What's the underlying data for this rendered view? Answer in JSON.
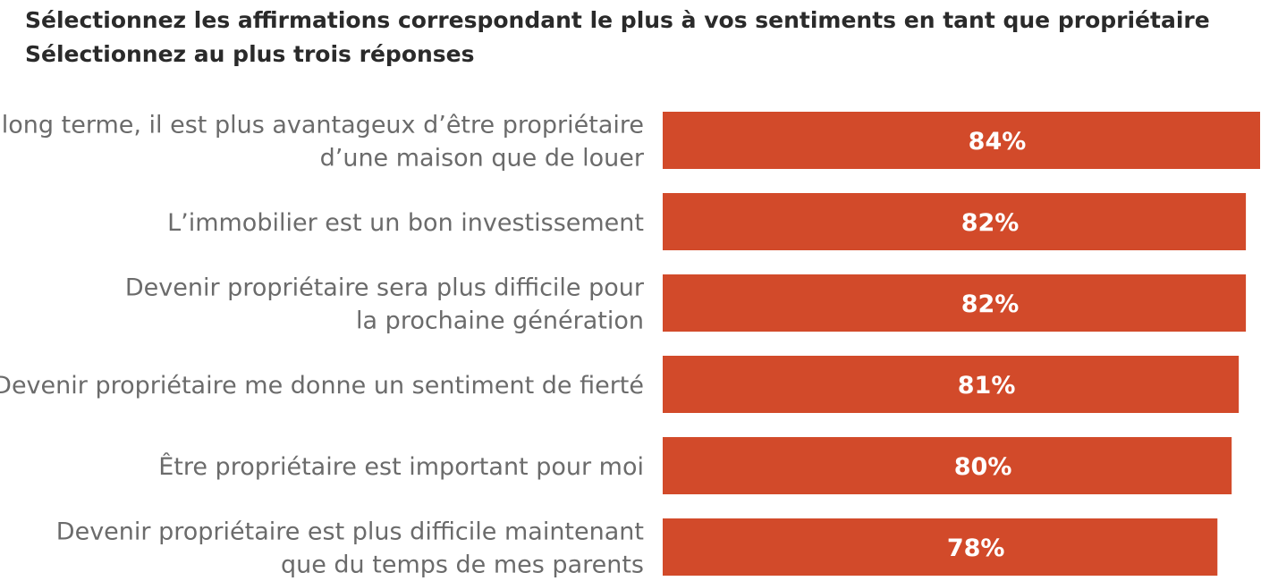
{
  "chart_data": {
    "type": "bar",
    "orientation": "horizontal",
    "title": "Sélectionnez les affirmations correspondant le plus à vos sentiments en tant que propriétaire",
    "subtitle": "Sélectionnez au plus trois réponses",
    "categories": [
      [
        "À long terme, il est plus avantageux d’être propriétaire",
        "d’une maison que de louer"
      ],
      [
        "L’immobilier est un bon investissement"
      ],
      [
        "Devenir propriétaire sera plus difficile pour",
        "la prochaine génération"
      ],
      [
        "Devenir propriétaire me donne un sentiment de fierté"
      ],
      [
        "Être propriétaire est important pour moi"
      ],
      [
        "Devenir propriétaire est plus difficile maintenant",
        "que du temps de mes parents"
      ]
    ],
    "values": [
      84,
      82,
      82,
      81,
      80,
      78
    ],
    "value_labels": [
      "84%",
      "82%",
      "82%",
      "81%",
      "80%",
      "78%"
    ],
    "bar_color": "#d24a2a",
    "grid": false,
    "legend": "none"
  }
}
